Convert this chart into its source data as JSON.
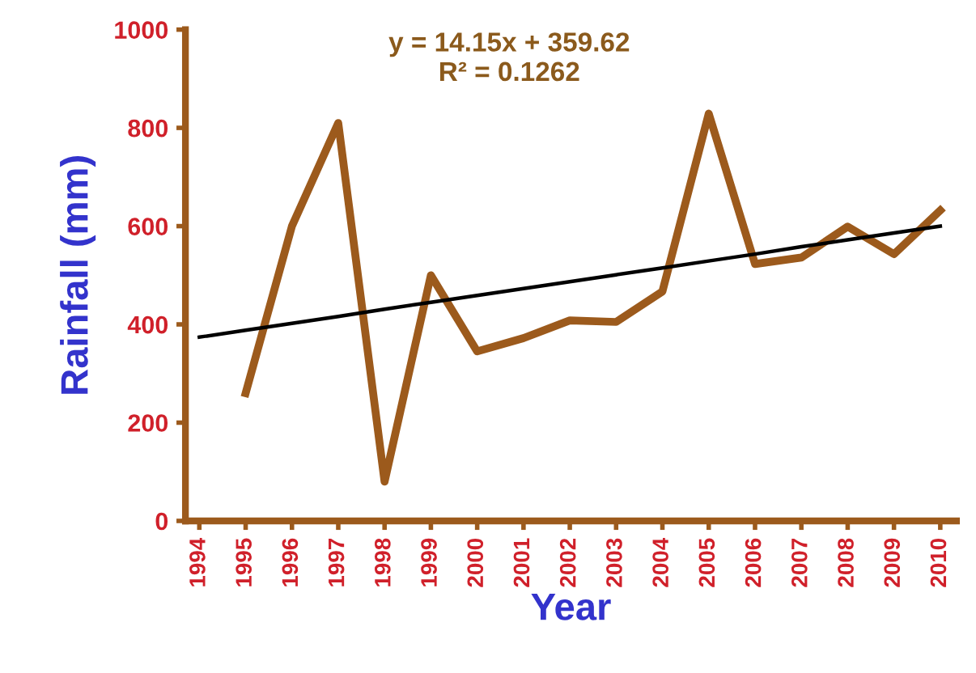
{
  "chart_data": {
    "type": "line",
    "xlabel": "Year",
    "ylabel": "Rainfall (mm)",
    "categories": [
      "1994",
      "1995",
      "1996",
      "1997",
      "1998",
      "1999",
      "2000",
      "2001",
      "2002",
      "2003",
      "2004",
      "2005",
      "2006",
      "2007",
      "2008",
      "2009",
      "2010"
    ],
    "series": [
      {
        "color": "#9c5a1c",
        "values": [
          null,
          260,
          600,
          810,
          80,
          500,
          345,
          372,
          408,
          405,
          467,
          829,
          523,
          536,
          599,
          543,
          632
        ]
      },
      {
        "type": "line",
        "color": "#000000",
        "values": [
          374,
          388,
          402,
          416,
          431,
          445,
          459,
          473,
          487,
          501,
          515,
          529,
          543,
          558,
          572,
          586,
          600
        ]
      }
    ],
    "ylim": [
      0,
      1000
    ],
    "yticks": [
      0,
      200,
      400,
      600,
      800,
      1000
    ],
    "annotations": [
      "y = 14.15x + 359.62",
      "R² = 0.1262"
    ],
    "grid": false,
    "legend": false
  }
}
